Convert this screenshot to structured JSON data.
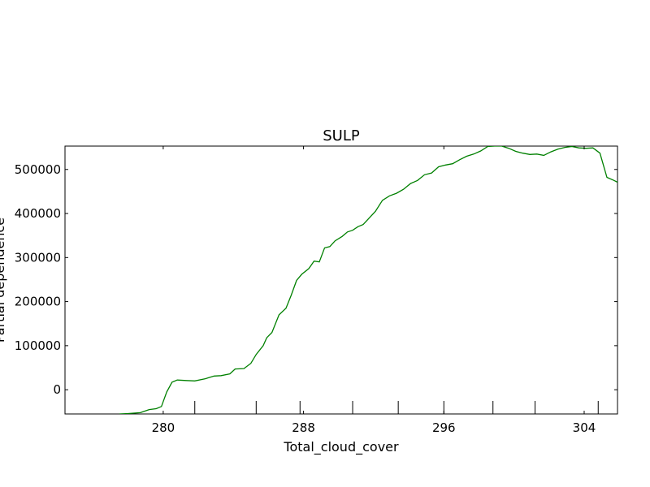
{
  "chart_data": {
    "type": "line",
    "title": "SULP",
    "xlabel": "Total_cloud_cover",
    "ylabel": "Partial dependence",
    "xlim": [
      274.4,
      305.9
    ],
    "ylim": [
      -55000,
      553000
    ],
    "xticks": [
      280,
      288,
      296,
      304
    ],
    "yticks": [
      0,
      100000,
      200000,
      300000,
      400000,
      500000
    ],
    "ytick_labels": [
      "0",
      "100000",
      "200000",
      "300000",
      "400000",
      "500000"
    ],
    "rug_x": [
      281.8,
      285.3,
      287.8,
      290.8,
      293.4,
      296.0,
      298.8,
      301.2,
      304.8
    ],
    "grid": false,
    "series": [
      {
        "color": "#008000",
        "x": [
          277.5,
          278.0,
          278.7,
          279.2,
          279.6,
          279.9,
          280.2,
          280.5,
          280.8,
          281.3,
          281.8,
          282.4,
          282.9,
          283.3,
          283.8,
          284.1,
          284.6,
          285.0,
          285.3,
          285.7,
          285.9,
          286.2,
          286.6,
          287.0,
          287.3,
          287.6,
          287.9,
          288.3,
          288.6,
          288.9,
          289.2,
          289.5,
          289.8,
          290.2,
          290.5,
          290.8,
          291.1,
          291.4,
          291.7,
          292.1,
          292.5,
          292.9,
          293.3,
          293.7,
          294.1,
          294.5,
          294.9,
          295.3,
          295.7,
          296.1,
          296.5,
          296.9,
          297.3,
          297.7,
          298.1,
          298.5,
          298.9,
          299.3,
          299.7,
          300.1,
          300.5,
          300.9,
          301.3,
          301.7,
          302.1,
          302.5,
          302.9,
          303.3,
          303.7,
          304.1,
          304.5,
          304.9,
          305.3,
          305.7,
          305.9
        ],
        "values": [
          -55000,
          -54000,
          -52000,
          -45000,
          -43000,
          -38000,
          -5000,
          17000,
          22000,
          21000,
          20000,
          25000,
          31000,
          32000,
          36000,
          47000,
          48000,
          60000,
          80000,
          100000,
          118000,
          130000,
          170000,
          185000,
          215000,
          248000,
          262000,
          275000,
          292000,
          290000,
          322000,
          325000,
          338000,
          348000,
          358000,
          362000,
          370000,
          375000,
          388000,
          405000,
          430000,
          440000,
          446000,
          455000,
          468000,
          475000,
          488000,
          492000,
          506000,
          510000,
          513000,
          522000,
          530000,
          535000,
          542000,
          552000,
          553000,
          553000,
          548000,
          541000,
          537000,
          534000,
          535000,
          532000,
          540000,
          546000,
          550000,
          552000,
          549000,
          548000,
          549000,
          537000,
          482000,
          475000,
          471000
        ]
      }
    ]
  }
}
